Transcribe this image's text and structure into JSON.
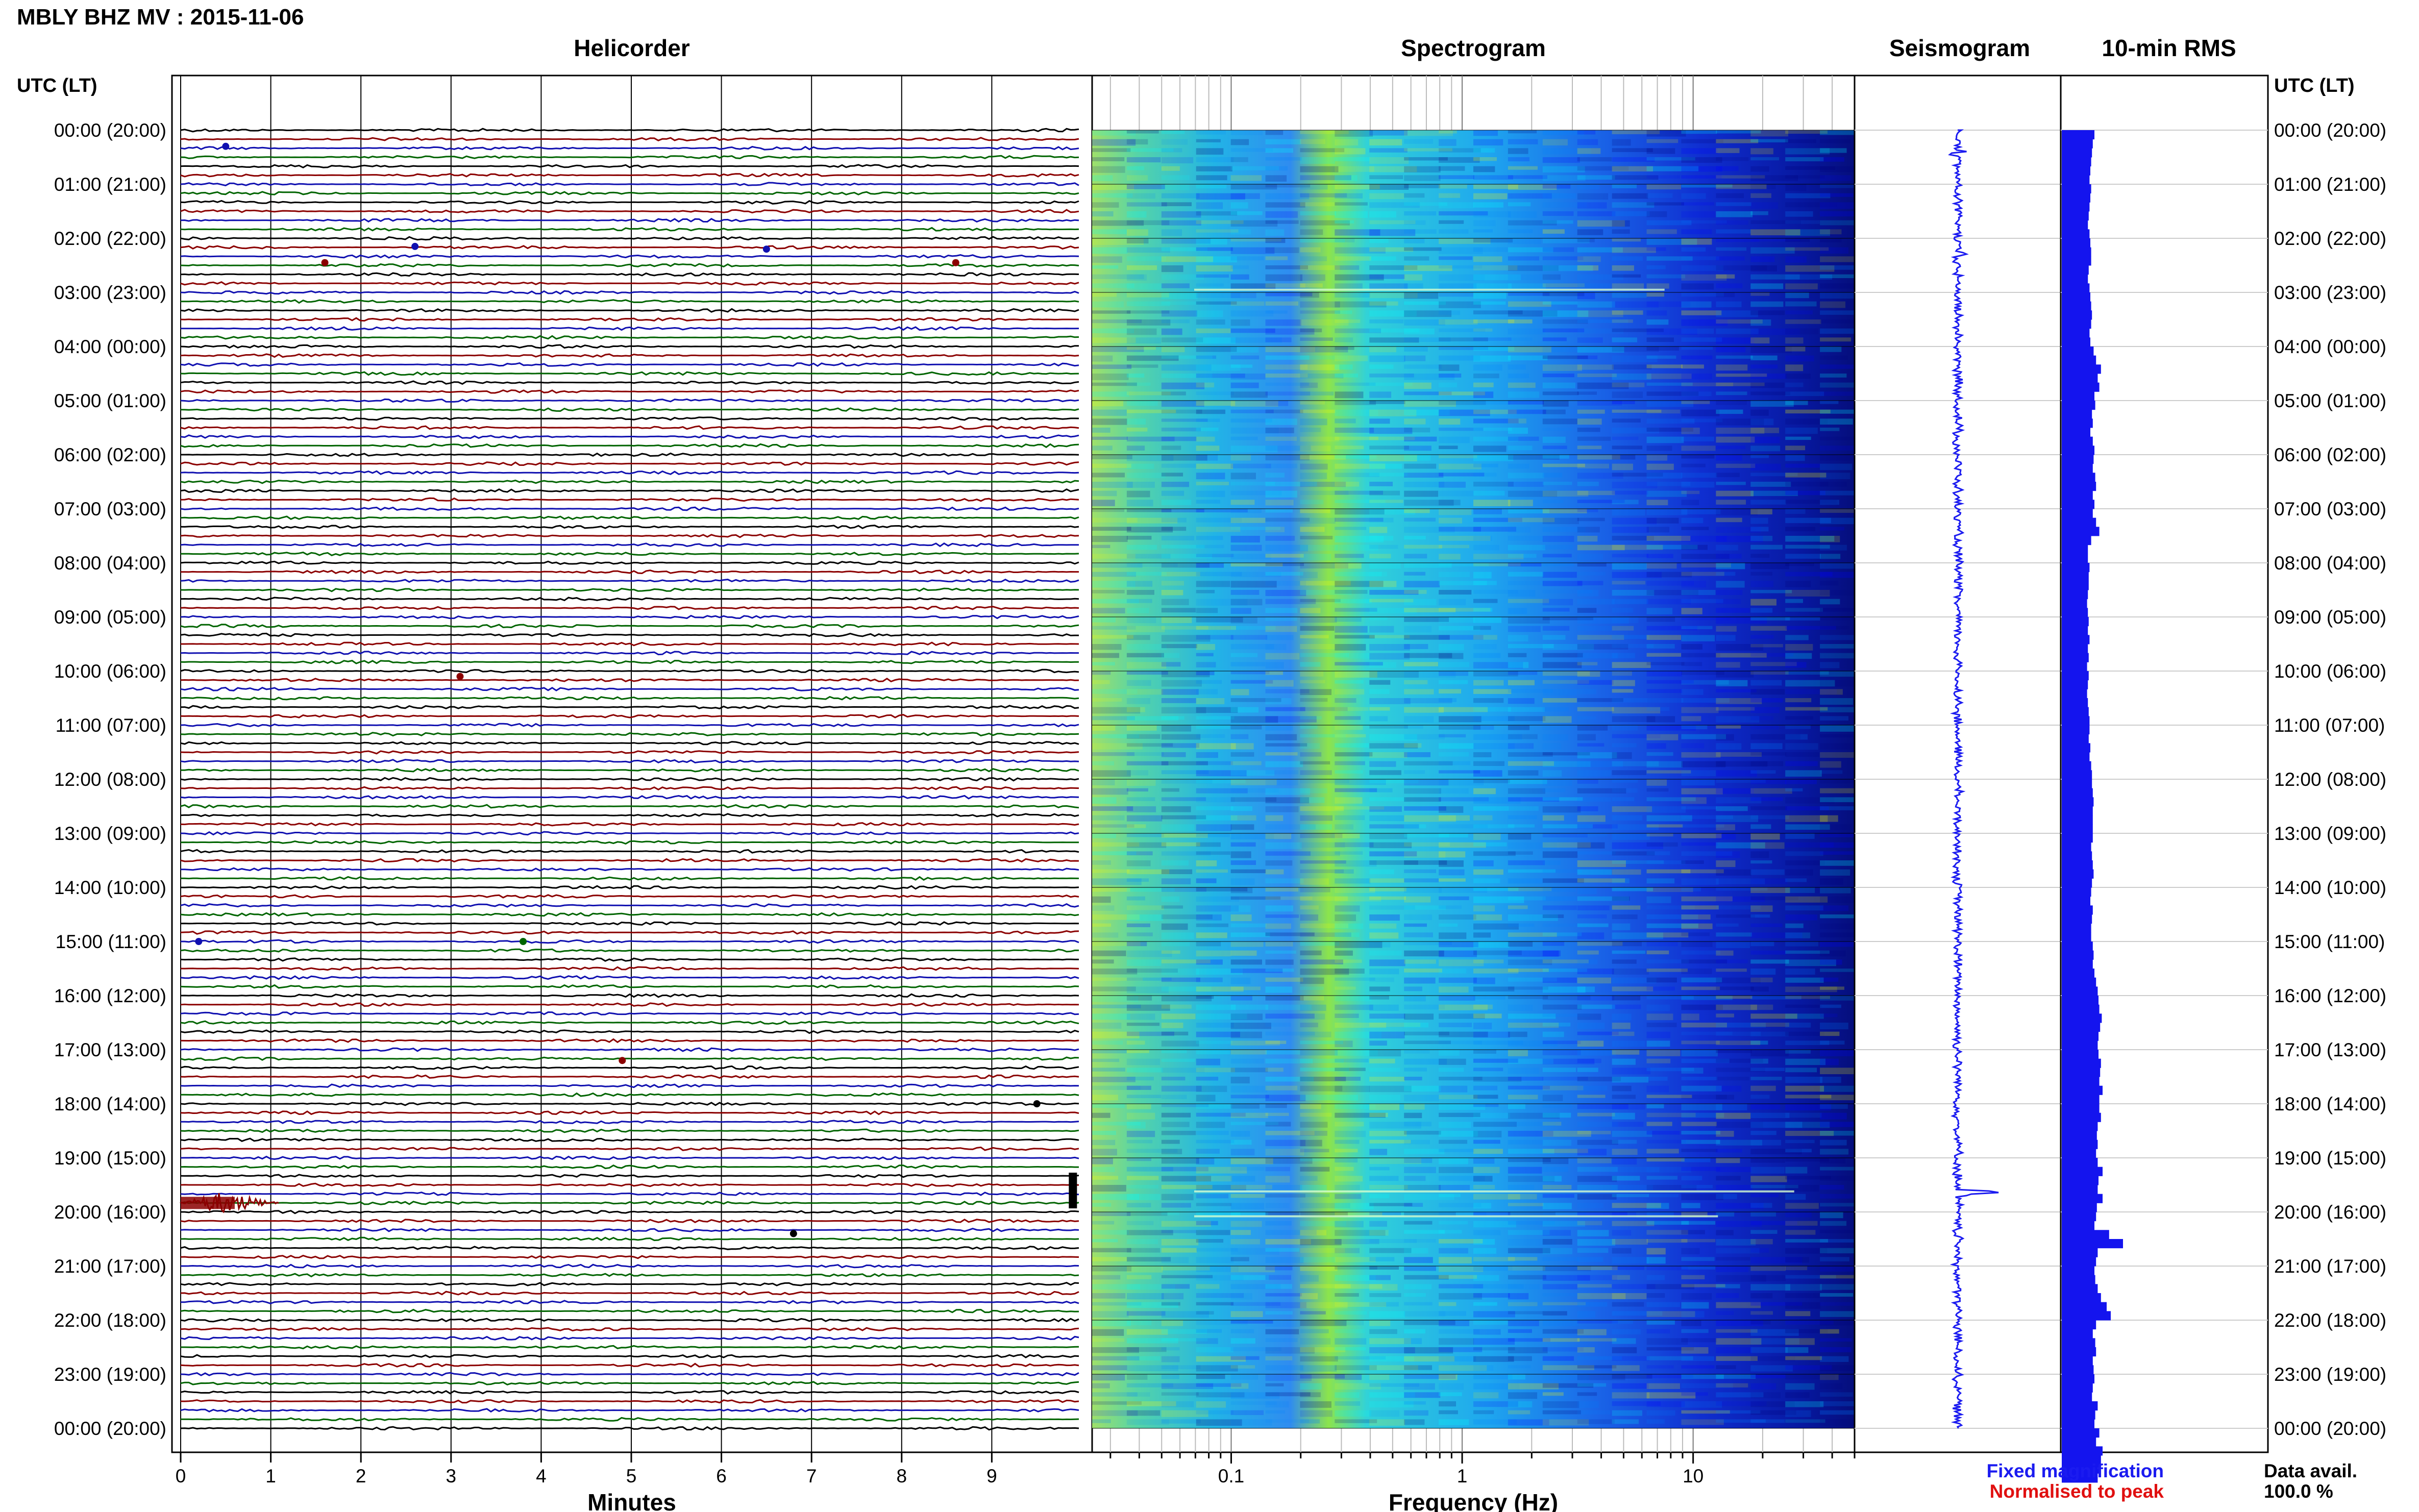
{
  "header": {
    "title": "MBLY BHZ MV : 2015-11-06"
  },
  "panels": {
    "helicorder": "Helicorder",
    "spectrogram": "Spectrogram",
    "seismogram": "Seismogram",
    "rms": "10-min RMS"
  },
  "time_axis": {
    "label": "UTC (LT)",
    "ticks": [
      "00:00 (20:00)",
      "01:00 (21:00)",
      "02:00 (22:00)",
      "03:00 (23:00)",
      "04:00 (00:00)",
      "05:00 (01:00)",
      "06:00 (02:00)",
      "07:00 (03:00)",
      "08:00 (04:00)",
      "09:00 (05:00)",
      "10:00 (06:00)",
      "11:00 (07:00)",
      "12:00 (08:00)",
      "13:00 (09:00)",
      "14:00 (10:00)",
      "15:00 (11:00)",
      "16:00 (12:00)",
      "17:00 (13:00)",
      "18:00 (14:00)",
      "19:00 (15:00)",
      "20:00 (16:00)",
      "21:00 (17:00)",
      "22:00 (18:00)",
      "23:00 (19:00)",
      "00:00 (20:00)"
    ]
  },
  "footer": {
    "minutes_label": "Minutes",
    "frequency_label": "Frequency (Hz)",
    "fixed_magnification": "Fixed magnification",
    "normalised_to_peak": "Normalised to peak",
    "data_avail_label": "Data avail.",
    "data_avail_value": "100.0 %"
  },
  "colors": {
    "fixed_magnification": "#1b1bf0",
    "normalised_to_peak": "#e01010",
    "trace_cycle": [
      "#000000",
      "#8b0000",
      "#1010b0",
      "#006400"
    ],
    "rms_bar": "#1414ee",
    "spectrogram_scale": [
      "#00007a",
      "#0000ff",
      "#0080ff",
      "#00ffff",
      "#ffff00"
    ]
  },
  "chart_data": {
    "type": "heatmap",
    "helicorder": {
      "x_ticks": [
        "0",
        "1",
        "2",
        "3",
        "4",
        "5",
        "6",
        "7",
        "8",
        "9"
      ],
      "xlim": [
        0,
        10
      ],
      "lines_per_hour": 6,
      "line_minutes": 10
    },
    "spectrogram": {
      "x_scale": "log",
      "x_ticks": [
        "0.1",
        "1",
        "10"
      ],
      "xlim": [
        0.025,
        50
      ]
    },
    "events": [
      {
        "time": "19:40",
        "minute": 0.5,
        "description": "large signal"
      },
      {
        "time": "19:30",
        "minute": 9.9,
        "description": "spike"
      }
    ],
    "rms_10min": [
      0.4,
      0.38,
      0.37,
      0.36,
      0.35,
      0.34,
      0.36,
      0.35,
      0.34,
      0.33,
      0.32,
      0.34,
      0.35,
      0.36,
      0.36,
      0.33,
      0.32,
      0.34,
      0.35,
      0.36,
      0.37,
      0.36,
      0.34,
      0.35,
      0.39,
      0.42,
      0.48,
      0.44,
      0.46,
      0.4,
      0.41,
      0.37,
      0.38,
      0.35,
      0.38,
      0.4,
      0.39,
      0.38,
      0.41,
      0.42,
      0.38,
      0.4,
      0.38,
      0.42,
      0.46,
      0.36,
      0.32,
      0.32,
      0.34,
      0.33,
      0.33,
      0.32,
      0.31,
      0.32,
      0.33,
      0.32,
      0.34,
      0.32,
      0.33,
      0.31,
      0.33,
      0.32,
      0.31,
      0.32,
      0.33,
      0.34,
      0.34,
      0.33,
      0.35,
      0.34,
      0.36,
      0.37,
      0.37,
      0.38,
      0.39,
      0.38,
      0.38,
      0.38,
      0.38,
      0.36,
      0.37,
      0.38,
      0.39,
      0.37,
      0.36,
      0.35,
      0.38,
      0.37,
      0.36,
      0.36,
      0.38,
      0.39,
      0.38,
      0.4,
      0.42,
      0.44,
      0.45,
      0.46,
      0.49,
      0.47,
      0.45,
      0.44,
      0.45,
      0.48,
      0.47,
      0.46,
      0.5,
      0.46,
      0.46,
      0.48,
      0.44,
      0.43,
      0.44,
      0.42,
      0.44,
      0.5,
      0.45,
      0.44,
      0.5,
      0.43,
      0.42,
      0.4,
      0.58,
      0.75,
      0.44,
      0.42,
      0.4,
      0.41,
      0.44,
      0.48,
      0.55,
      0.6,
      0.42,
      0.38,
      0.41,
      0.42,
      0.38,
      0.39,
      0.4,
      0.38,
      0.37,
      0.44,
      0.41,
      0.4,
      0.46,
      0.42,
      0.5,
      0.48,
      0.46,
      0.44
    ]
  }
}
